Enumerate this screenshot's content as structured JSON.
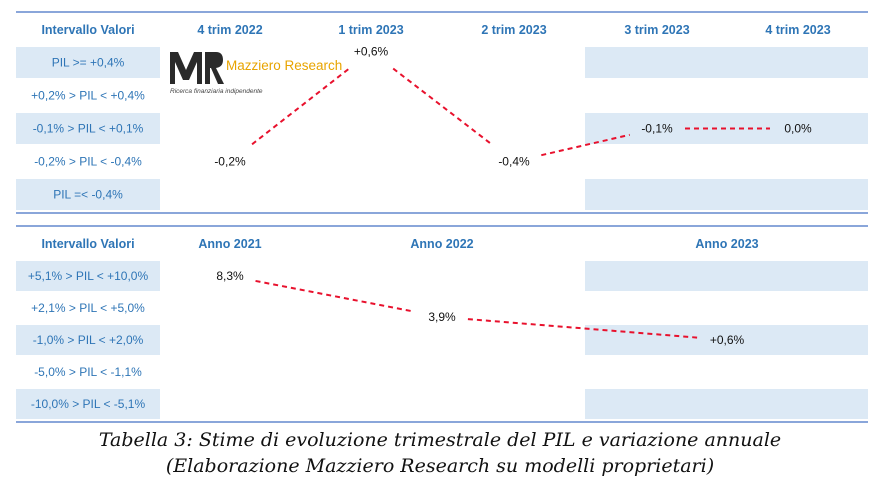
{
  "caption": {
    "line1": "Tabella 3: Stime di evoluzione trimestrale del PIL e variazione annuale",
    "line2": "(Elaborazione Mazziero Research su modelli proprietari)"
  },
  "logo": {
    "brand": "Mazziero Research",
    "tagline": "Ricerca finanziaria indipendente"
  },
  "colors": {
    "header_text": "#2e75b6",
    "band_fill": "#dce9f5",
    "line": "#e8112d",
    "rule": "#4472c4",
    "logo_accent": "#e8a400"
  },
  "chart_data": [
    {
      "type": "line",
      "title": "",
      "row_header": "Intervallo Valori",
      "categories": [
        "4 trim 2022",
        "1 trim 2023",
        "2 trim 2023",
        "3 trim 2023",
        "4 trim 2023"
      ],
      "bands": [
        "PIL >= +0,4%",
        "+0,2% > PIL < +0,4%",
        "-0,1% > PIL < +0,1%",
        "-0,2% > PIL < -0,4%",
        "PIL =< -0,4%"
      ],
      "series": [
        {
          "values": [
            -0.2,
            0.6,
            -0.4,
            -0.1,
            0.0
          ],
          "labels": [
            "-0,2%",
            "+0,6%",
            "-0,4%",
            "-0,1%",
            "0,0%"
          ]
        }
      ]
    },
    {
      "type": "line",
      "title": "",
      "row_header": "Intervallo Valori",
      "categories": [
        "Anno 2021",
        "Anno 2022",
        "Anno 2023"
      ],
      "bands": [
        "+5,1% > PIL < +10,0%",
        "+2,1% > PIL < +5,0%",
        "-1,0% > PIL < +2,0%",
        "-5,0% > PIL < -1,1%",
        "-10,0% > PIL < -5,1%"
      ],
      "series": [
        {
          "values": [
            8.3,
            3.9,
            0.6
          ],
          "labels": [
            "8,3%",
            "3,9%",
            "+0,6%"
          ]
        }
      ]
    }
  ]
}
